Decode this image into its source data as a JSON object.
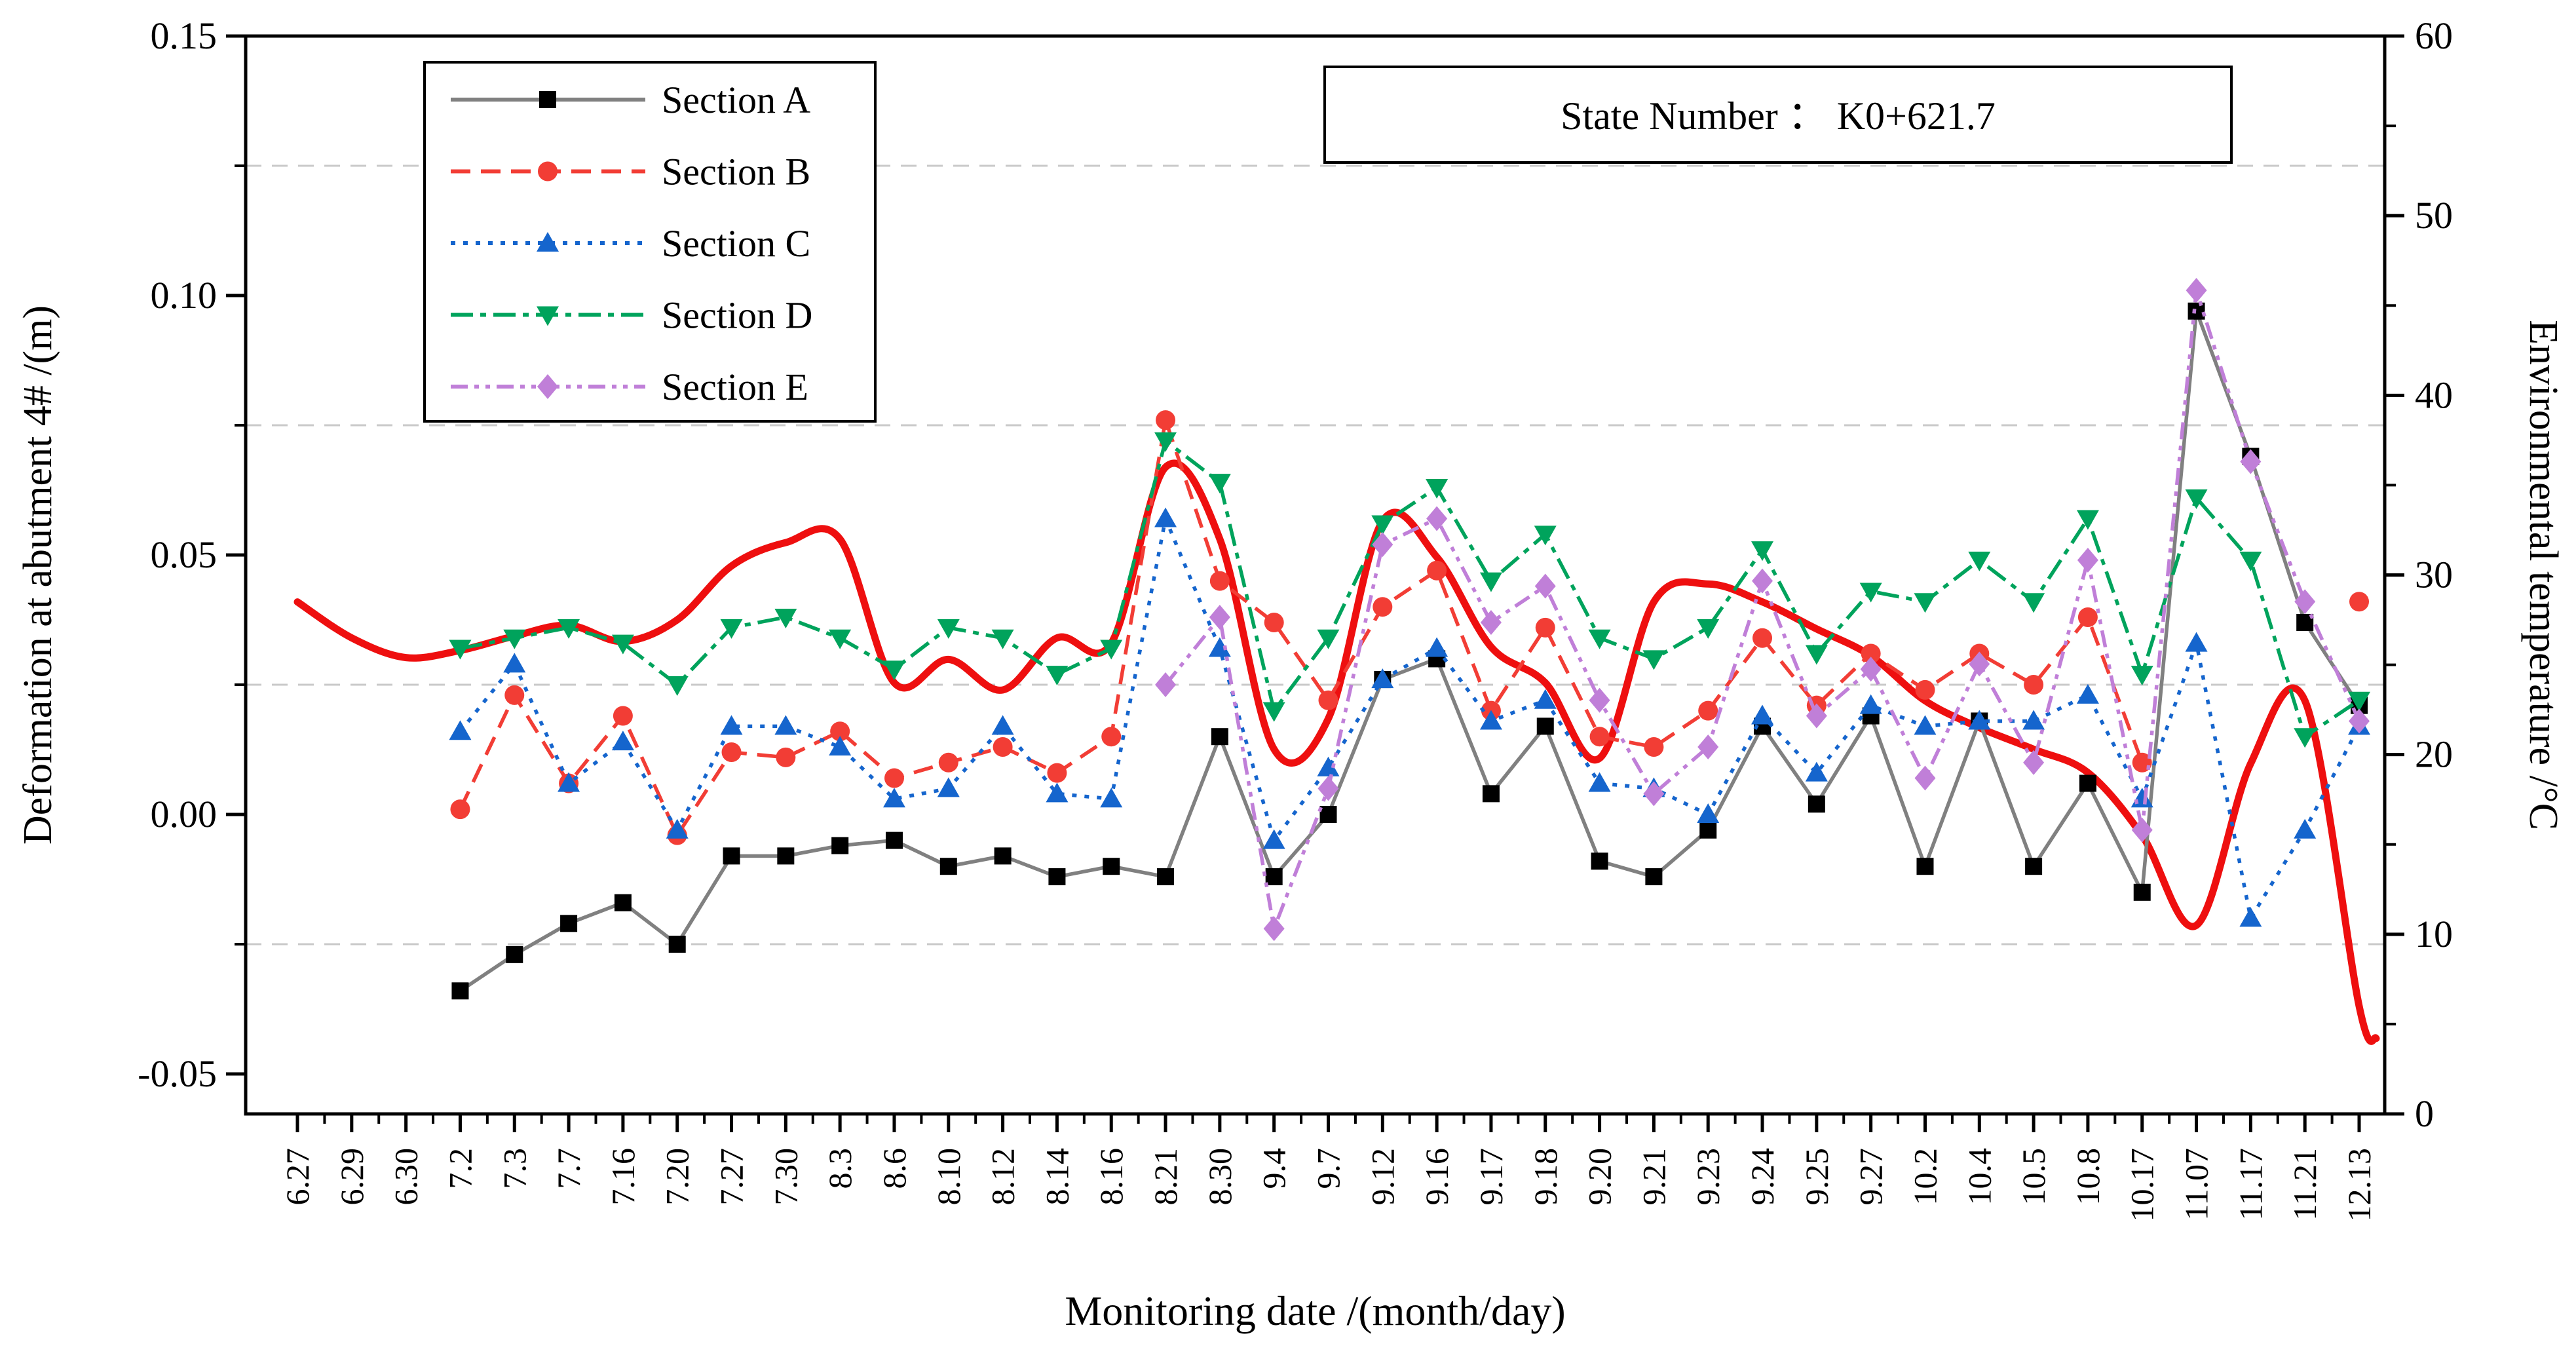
{
  "annotation_box": {
    "text": "State Number ：  K0+621.7"
  },
  "axes": {
    "left_title": "Deformation at abutment 4# /(m)",
    "right_title": "Environmental temperature /°C",
    "x_title": "Monitoring date /(month/day)",
    "left_tick_labels": [
      "0.15",
      "0.10",
      "0.05",
      "0.00",
      "-0.05"
    ],
    "left_tick_values": [
      0.15,
      0.1,
      0.05,
      0.0,
      -0.05
    ],
    "left_minor_values": [
      0.125,
      0.075,
      0.025,
      -0.025
    ],
    "right_tick_labels": [
      "60",
      "50",
      "40",
      "30",
      "20",
      "10",
      "0"
    ],
    "right_tick_values": [
      60,
      50,
      40,
      30,
      20,
      10,
      0
    ],
    "left_range": [
      -0.058,
      0.15
    ],
    "right_range": [
      0,
      60
    ]
  },
  "legend": {
    "items": [
      {
        "label": "Section A",
        "color": "#808080",
        "marker_color": "#000000",
        "marker": "square",
        "dash": ""
      },
      {
        "label": "Section B",
        "color": "#f23d35",
        "marker_color": "#f23d35",
        "marker": "circle",
        "dash": "30 16"
      },
      {
        "label": "Section C",
        "color": "#1565cd",
        "marker_color": "#1565cd",
        "marker": "triangle-up",
        "dash": "7 12"
      },
      {
        "label": "Section D",
        "color": "#00a35c",
        "marker_color": "#00a35c",
        "marker": "triangle-down",
        "dash": "34 11 9 11"
      },
      {
        "label": "Section E",
        "color": "#c07fd8",
        "marker_color": "#c07fd8",
        "marker": "diamond",
        "dash": "26 10 7 10 7 10"
      }
    ]
  },
  "chart_data": {
    "type": "line",
    "title": "",
    "xlabel": "Monitoring date /(month/day)",
    "ylabel_left": "Deformation at abutment 4# /(m)",
    "ylabel_right": "Environmental temperature /°C",
    "x": [
      "6.27",
      "6.29",
      "6.30",
      "7.2",
      "7.3",
      "7.7",
      "7.16",
      "7.20",
      "7.27",
      "7.30",
      "8.3",
      "8.6",
      "8.10",
      "8.12",
      "8.14",
      "8.16",
      "8.21",
      "8.30",
      "9.4",
      "9.7",
      "9.12",
      "9.16",
      "9.17",
      "9.18",
      "9.20",
      "9.21",
      "9.23",
      "9.24",
      "9.25",
      "9.27",
      "10.2",
      "10.4",
      "10.5",
      "10.8",
      "10.17",
      "11.07",
      "11.17",
      "11.21",
      "12.13"
    ],
    "ylim_left": [
      -0.058,
      0.15
    ],
    "ylim_right": [
      0,
      60
    ],
    "grid": "horizontal dashed gridlines at left-axis minor ticks",
    "legend_position": "upper-left inside plot",
    "series": [
      {
        "name": "Section A",
        "axis": "left",
        "unit": "m",
        "values": [
          null,
          null,
          null,
          -0.034,
          -0.027,
          -0.021,
          -0.017,
          -0.025,
          -0.008,
          -0.008,
          -0.006,
          -0.005,
          -0.01,
          -0.008,
          -0.012,
          -0.01,
          -0.012,
          0.015,
          -0.012,
          0.0,
          0.026,
          0.03,
          0.004,
          0.017,
          -0.009,
          -0.012,
          -0.003,
          0.017,
          0.002,
          0.019,
          -0.01,
          0.018,
          -0.01,
          0.006,
          -0.015,
          0.097,
          0.069,
          0.037,
          0.021
        ]
      },
      {
        "name": "Section B",
        "axis": "left",
        "unit": "m",
        "values": [
          null,
          null,
          null,
          0.001,
          0.023,
          0.006,
          0.019,
          -0.004,
          0.012,
          0.011,
          0.016,
          0.007,
          0.01,
          0.013,
          0.008,
          0.015,
          0.076,
          0.045,
          0.037,
          0.022,
          0.04,
          0.047,
          0.02,
          0.036,
          0.015,
          0.013,
          0.02,
          0.034,
          0.021,
          0.031,
          0.024,
          0.031,
          0.025,
          0.038,
          0.01,
          null,
          null,
          null,
          0.041
        ]
      },
      {
        "name": "Section C",
        "axis": "left",
        "unit": "m",
        "values": [
          null,
          null,
          null,
          0.016,
          0.029,
          0.006,
          0.014,
          -0.003,
          0.017,
          0.017,
          0.013,
          0.003,
          0.005,
          0.017,
          0.004,
          0.003,
          0.057,
          0.032,
          -0.005,
          0.009,
          0.026,
          0.032,
          0.018,
          0.022,
          0.006,
          0.005,
          0.0,
          0.019,
          0.008,
          0.021,
          0.017,
          0.018,
          0.018,
          0.023,
          0.003,
          0.033,
          -0.02,
          -0.003,
          0.017
        ]
      },
      {
        "name": "Section D",
        "axis": "left",
        "unit": "m",
        "values": [
          null,
          null,
          null,
          0.032,
          0.034,
          0.036,
          0.033,
          0.025,
          0.036,
          0.038,
          0.034,
          0.028,
          0.036,
          0.034,
          0.027,
          0.032,
          0.072,
          0.064,
          0.02,
          0.034,
          0.056,
          0.063,
          0.045,
          0.054,
          0.034,
          0.03,
          0.036,
          0.051,
          0.031,
          0.043,
          0.041,
          0.049,
          0.041,
          0.057,
          0.027,
          0.061,
          0.049,
          0.015,
          0.022
        ]
      },
      {
        "name": "Section E",
        "axis": "left",
        "unit": "m",
        "values": [
          null,
          null,
          null,
          null,
          null,
          null,
          null,
          null,
          null,
          null,
          null,
          null,
          null,
          null,
          null,
          null,
          0.025,
          0.038,
          -0.022,
          0.005,
          0.052,
          0.057,
          0.037,
          0.044,
          0.022,
          0.004,
          0.013,
          0.045,
          0.019,
          0.028,
          0.007,
          0.029,
          0.01,
          0.049,
          -0.003,
          0.101,
          0.068,
          0.041,
          0.018
        ]
      }
    ],
    "temperature_series": {
      "name": "Environmental temperature",
      "axis": "right",
      "unit": "°C",
      "style": "thick smooth red curve, no markers",
      "values": [
        28.5,
        26.5,
        25.4,
        25.8,
        26.6,
        27.2,
        26.3,
        27.5,
        30.5,
        31.8,
        32.0,
        24.0,
        25.3,
        23.6,
        26.5,
        26.2,
        36.0,
        32.0,
        20.3,
        22.0,
        33.0,
        31.0,
        26.0,
        24.0,
        19.8,
        28.5,
        29.5,
        28.5,
        27.0,
        25.5,
        23.0,
        21.5,
        20.3,
        19.0,
        15.5,
        10.5,
        19.5,
        23.0,
        6.0
      ],
      "tail_end_temp": 4.2
    },
    "colors": {
      "section_a_line": "#808080",
      "section_a_marker": "#000000",
      "section_b": "#f23d35",
      "section_c": "#1565cd",
      "section_d": "#00a35c",
      "section_e": "#c07fd8",
      "temperature": "#ee0f0f",
      "gridline": "#c9c9c9",
      "axis": "#000000"
    }
  }
}
